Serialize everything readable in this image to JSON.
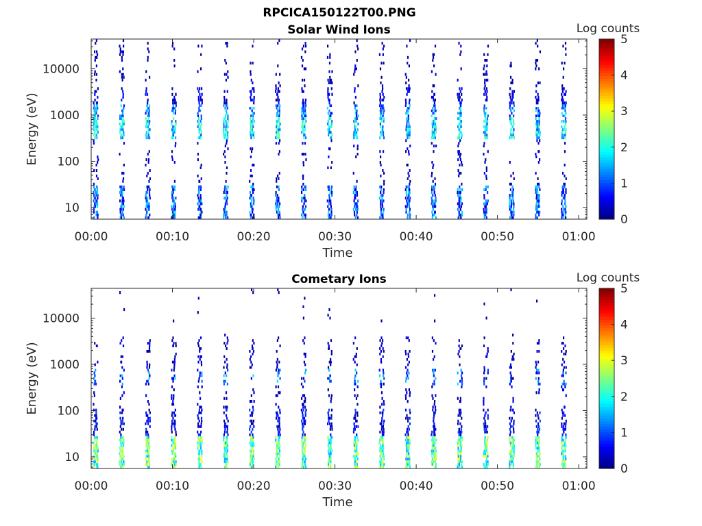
{
  "figure": {
    "title": "RPCICA150122T00.PNG"
  },
  "chart_data": [
    {
      "type": "heatmap",
      "title": "Solar Wind Ions",
      "xlabel": "Time",
      "ylabel": "Energy (eV)",
      "x_ticks": [
        "00:00",
        "00:10",
        "00:20",
        "00:30",
        "00:40",
        "00:50",
        "01:00"
      ],
      "x_range_minutes": [
        0,
        61
      ],
      "y_ticks": [
        "10",
        "100",
        "1000",
        "10000"
      ],
      "y_tick_values": [
        10,
        100,
        1000,
        10000
      ],
      "y_scale": "log",
      "ylim": [
        5.6,
        44000
      ],
      "colorbar": {
        "label": "Log counts",
        "ticks": [
          "0",
          "1",
          "2",
          "3",
          "4",
          "5"
        ],
        "range": [
          0,
          5
        ],
        "colormap": "jet"
      },
      "sweep_period_minutes": 3.2,
      "bands": [
        {
          "energy_range": [
            5.6,
            30
          ],
          "level_range": [
            0.2,
            1.8
          ],
          "coverage": 0.85
        },
        {
          "energy_range": [
            300,
            900
          ],
          "level_range": [
            1.0,
            2.4
          ],
          "coverage": 0.9
        },
        {
          "energy_range": [
            900,
            1700
          ],
          "level_range": [
            0.5,
            1.9
          ],
          "coverage": 0.7
        },
        {
          "energy_range": [
            1700,
            4000
          ],
          "level_range": [
            0.1,
            0.8
          ],
          "coverage": 0.55
        },
        {
          "energy_range": [
            30,
            300
          ],
          "level_range": [
            0.05,
            0.6
          ],
          "coverage": 0.2
        },
        {
          "energy_range": [
            4000,
            44000
          ],
          "level_range": [
            0.05,
            0.5
          ],
          "coverage": 0.2
        }
      ]
    },
    {
      "type": "heatmap",
      "title": "Cometary Ions",
      "xlabel": "Time",
      "ylabel": "Energy (eV)",
      "x_ticks": [
        "00:00",
        "00:10",
        "00:20",
        "00:30",
        "00:40",
        "00:50",
        "01:00"
      ],
      "x_range_minutes": [
        0,
        61
      ],
      "y_ticks": [
        "10",
        "100",
        "1000",
        "10000"
      ],
      "y_tick_values": [
        10,
        100,
        1000,
        10000
      ],
      "y_scale": "log",
      "ylim": [
        5.6,
        44000
      ],
      "colorbar": {
        "label": "Log counts",
        "ticks": [
          "0",
          "1",
          "2",
          "3",
          "4",
          "5"
        ],
        "range": [
          0,
          5
        ],
        "colormap": "jet"
      },
      "sweep_period_minutes": 3.2,
      "bands": [
        {
          "energy_range": [
            5.6,
            28
          ],
          "level_range": [
            1.4,
            3.1
          ],
          "coverage": 0.95
        },
        {
          "energy_range": [
            28,
            110
          ],
          "level_range": [
            0.05,
            1.0
          ],
          "coverage": 0.6
        },
        {
          "energy_range": [
            110,
            350
          ],
          "level_range": [
            0.05,
            0.6
          ],
          "coverage": 0.25
        },
        {
          "energy_range": [
            350,
            800
          ],
          "level_range": [
            0.2,
            1.8
          ],
          "coverage": 0.45
        },
        {
          "energy_range": [
            800,
            4000
          ],
          "level_range": [
            0.05,
            0.6
          ],
          "coverage": 0.3
        },
        {
          "energy_range": [
            4000,
            44000
          ],
          "level_range": [
            0.05,
            0.4
          ],
          "coverage": 0.02
        }
      ]
    }
  ]
}
